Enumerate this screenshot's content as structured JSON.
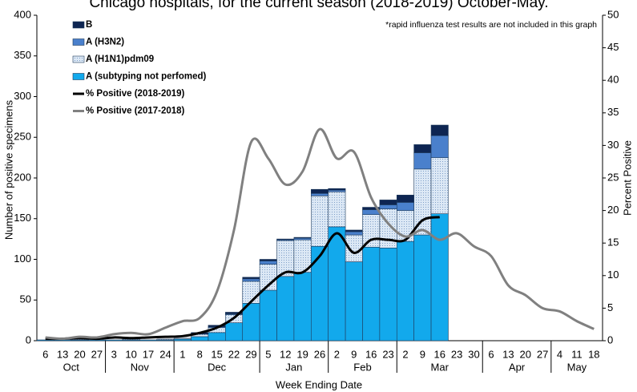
{
  "chart_data": {
    "type": "bar",
    "title": "Chicago hospitals, for the current season (2018-2019) October-May.",
    "annotation": "*rapid influenza test results are not included in this graph",
    "x_label": "Week Ending Date",
    "y_label": "Number of positive specimens",
    "y2_label": "Percent Positive",
    "categories": [
      "6",
      "13",
      "20",
      "27",
      "3",
      "10",
      "17",
      "24",
      "1",
      "8",
      "15",
      "22",
      "29",
      "5",
      "12",
      "19",
      "26",
      "2",
      "9",
      "16",
      "23",
      "2",
      "9",
      "16",
      "23",
      "30",
      "6",
      "13",
      "20",
      "27",
      "4",
      "11",
      "18"
    ],
    "months": [
      "Oct",
      "Nov",
      "Dec",
      "Jan",
      "Feb",
      "Mar",
      "Apr",
      "May"
    ],
    "stacked": true,
    "ylim": [
      0,
      400
    ],
    "yticks": [
      0,
      50,
      100,
      150,
      200,
      250,
      300,
      350,
      400
    ],
    "y2lim": [
      0,
      50
    ],
    "y2ticks": [
      0,
      5,
      10,
      15,
      20,
      25,
      30,
      35,
      40,
      45,
      50
    ],
    "series": [
      {
        "name": "A (subtyping not perfomed)",
        "type": "bar",
        "color": "#12a9ec",
        "values": [
          1,
          1,
          1,
          1,
          1,
          1,
          1,
          1,
          2,
          5,
          10,
          22,
          46,
          62,
          79,
          84,
          116,
          140,
          97,
          115,
          114,
          122,
          130,
          156,
          null,
          null,
          null,
          null,
          null,
          null,
          null,
          null,
          null
        ]
      },
      {
        "name": "A (H1N1)pdm09",
        "type": "bar",
        "color": "#dce8f5",
        "values": [
          0,
          0,
          1,
          0,
          0,
          1,
          0,
          1,
          1,
          3,
          6,
          10,
          27,
          32,
          44,
          40,
          62,
          43,
          33,
          40,
          48,
          38,
          81,
          69,
          null,
          null,
          null,
          null,
          null,
          null,
          null,
          null,
          null
        ]
      },
      {
        "name": "A (H3N2)",
        "type": "bar",
        "color": "#4a80cc",
        "values": [
          0,
          0,
          0,
          0,
          0,
          0,
          0,
          0,
          0,
          0,
          1,
          1,
          3,
          4,
          1,
          2,
          3,
          2,
          4,
          6,
          5,
          10,
          20,
          27,
          null,
          null,
          null,
          null,
          null,
          null,
          null,
          null,
          null
        ]
      },
      {
        "name": "B",
        "type": "bar",
        "color": "#0e2552",
        "values": [
          0,
          0,
          0,
          0,
          0,
          0,
          0,
          0,
          0,
          2,
          2,
          2,
          2,
          2,
          1,
          1,
          5,
          2,
          2,
          3,
          6,
          9,
          10,
          13,
          null,
          null,
          null,
          null,
          null,
          null,
          null,
          null,
          null
        ]
      },
      {
        "name": "% Positive (2018-2019)",
        "type": "line",
        "axis": "y2",
        "color": "#000000",
        "values": [
          0.3,
          0.3,
          0.4,
          0.3,
          0.5,
          0.4,
          0.5,
          0.6,
          0.7,
          1.2,
          2.0,
          3.5,
          6.0,
          8.5,
          10.5,
          10.5,
          13.0,
          16.5,
          13.5,
          15.5,
          15.5,
          15.5,
          18.5,
          19.0,
          null,
          null,
          null,
          null,
          null,
          null,
          null,
          null,
          null
        ]
      },
      {
        "name": "% Positive (2017-2018)",
        "type": "line",
        "axis": "y2",
        "color": "#808080",
        "values": [
          0.5,
          0.3,
          0.6,
          0.5,
          1.0,
          1.2,
          1.0,
          2.0,
          3.0,
          3.5,
          7.5,
          17,
          30.5,
          28,
          24,
          26,
          32.5,
          28,
          29,
          22,
          18,
          16,
          17,
          15.5,
          16.5,
          14.5,
          13,
          8.5,
          7,
          5,
          4.5,
          3,
          1.8
        ]
      }
    ]
  }
}
